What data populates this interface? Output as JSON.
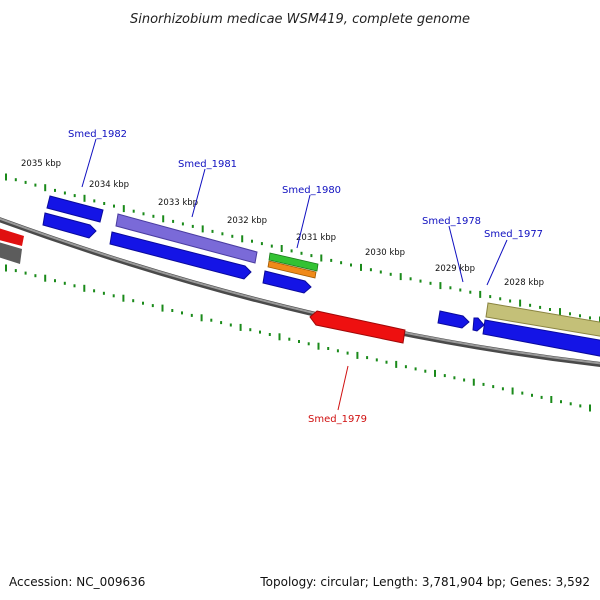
{
  "title": "Sinorhizobium medicae WSM419, complete genome",
  "footer": {
    "accession": "Accession: NC_009636",
    "summary": "Topology: circular; Length: 3,781,904 bp; Genes: 3,592"
  },
  "ruler": {
    "labels": [
      "2035 kbp",
      "2034 kbp",
      "2033 kbp",
      "2032 kbp",
      "2031 kbp",
      "2030 kbp",
      "2029 kbp",
      "2028 kbp"
    ],
    "tick_color": "#1a8a1a"
  },
  "gene_labels": [
    {
      "text": "Smed_1982",
      "color": "#1010c0"
    },
    {
      "text": "Smed_1981",
      "color": "#1010c0"
    },
    {
      "text": "Smed_1980",
      "color": "#1010c0"
    },
    {
      "text": "Smed_1978",
      "color": "#1010c0"
    },
    {
      "text": "Smed_1977",
      "color": "#1010c0"
    },
    {
      "text": "Smed_1979",
      "color": "#d01010"
    }
  ],
  "colors": {
    "backbone": "#808080",
    "cds": "#1414e6",
    "cds_dark": "#0000a0",
    "pseudo": "#7a6ad8",
    "rna_green": "#33c233",
    "rna_orange": "#f08a1a",
    "rev_red": "#ee1010",
    "khaki": "#c4c078",
    "gray_feat": "#6e6e6e"
  }
}
